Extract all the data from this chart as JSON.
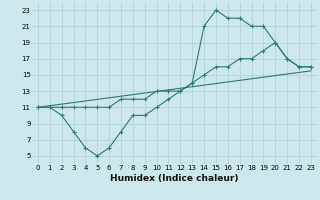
{
  "title": "",
  "xlabel": "Humidex (Indice chaleur)",
  "bg_color": "#cce8ec",
  "grid_color": "#aacfd4",
  "line_color": "#2a7a76",
  "xlim": [
    -0.5,
    23.5
  ],
  "ylim": [
    4.0,
    24.0
  ],
  "xticks": [
    0,
    1,
    2,
    3,
    4,
    5,
    6,
    7,
    8,
    9,
    10,
    11,
    12,
    13,
    14,
    15,
    16,
    17,
    18,
    19,
    20,
    21,
    22,
    23
  ],
  "yticks": [
    5,
    7,
    9,
    11,
    13,
    15,
    17,
    19,
    21,
    23
  ],
  "line1_x": [
    0,
    1,
    2,
    3,
    4,
    5,
    6,
    7,
    8,
    9,
    10,
    11,
    12,
    13,
    14,
    15,
    16,
    17,
    18,
    19,
    20,
    21,
    22,
    23
  ],
  "line1_y": [
    11,
    11,
    10,
    8,
    6,
    5,
    6,
    8,
    10,
    10,
    11,
    12,
    13,
    14,
    21,
    23,
    22,
    22,
    21,
    21,
    19,
    17,
    16,
    16
  ],
  "line2_x": [
    0,
    2,
    3,
    4,
    5,
    6,
    7,
    8,
    9,
    10,
    11,
    12,
    13,
    14,
    15,
    16,
    17,
    18,
    19,
    20,
    21,
    22,
    23
  ],
  "line2_y": [
    11,
    11,
    11,
    11,
    11,
    11,
    12,
    12,
    12,
    13,
    13,
    13,
    14,
    15,
    16,
    16,
    17,
    17,
    18,
    19,
    17,
    16,
    16
  ],
  "line3_x": [
    0,
    23
  ],
  "line3_y": [
    11,
    15.5
  ]
}
